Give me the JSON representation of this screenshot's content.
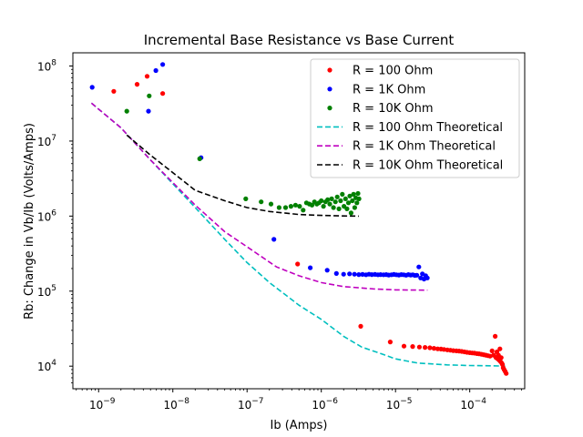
{
  "chart_data": {
    "type": "scatter",
    "title": "Incremental Base Resistance vs Base Current",
    "xlabel": "Ib (Amps)",
    "ylabel": "Rb: Change in Vb/Ib (Volts/Amps)",
    "xscale": "log",
    "yscale": "log",
    "xlim": [
      4.5e-10,
      0.00055
    ],
    "ylim": [
      5000,
      150000000
    ],
    "x_ticks": [
      {
        "value": 1e-09,
        "label": "10",
        "exp": "−9"
      },
      {
        "value": 1e-08,
        "label": "10",
        "exp": "−8"
      },
      {
        "value": 1e-07,
        "label": "10",
        "exp": "−7"
      },
      {
        "value": 1e-06,
        "label": "10",
        "exp": "−6"
      },
      {
        "value": 1e-05,
        "label": "10",
        "exp": "−5"
      },
      {
        "value": 0.0001,
        "label": "10",
        "exp": "−4"
      }
    ],
    "y_ticks": [
      {
        "value": 10000,
        "label": "10",
        "exp": "4"
      },
      {
        "value": 100000,
        "label": "10",
        "exp": "5"
      },
      {
        "value": 1000000,
        "label": "10",
        "exp": "6"
      },
      {
        "value": 10000000,
        "label": "10",
        "exp": "7"
      },
      {
        "value": 100000000,
        "label": "10",
        "exp": "8"
      }
    ],
    "grid": false,
    "legend_position": "top-right",
    "series": [
      {
        "name": "R = 100 Ohm",
        "kind": "markers",
        "color": "#ff0000",
        "x": [
          1.6e-09,
          3.3e-09,
          4.5e-09,
          7.3e-09,
          4.8e-07,
          3.4e-06,
          8.5e-06,
          1.3e-05,
          1.7e-05,
          2.1e-05,
          2.5e-05,
          2.9e-05,
          3.3e-05,
          3.7e-05,
          4.1e-05,
          4.5e-05,
          5e-05,
          5.5e-05,
          6e-05,
          6.6e-05,
          7.2e-05,
          7.8e-05,
          8.5e-05,
          9.2e-05,
          0.0001,
          0.000108,
          0.000116,
          0.000125,
          0.000134,
          0.000144,
          0.000154,
          0.000165,
          0.000176,
          0.000188,
          0.0002,
          0.00021,
          0.00022,
          0.000226,
          0.000232,
          0.000238,
          0.000244,
          0.00025,
          0.000255,
          0.00026,
          0.000265,
          0.00027,
          0.000276,
          0.000282,
          0.00029,
          0.0003,
          0.00031
        ],
        "y": [
          46000000,
          57000000,
          73000000,
          43000000,
          230000,
          34000,
          21000,
          18500,
          18300,
          18000,
          17800,
          17600,
          17300,
          17000,
          16900,
          16700,
          16500,
          16300,
          16100,
          16000,
          15900,
          15700,
          15500,
          15300,
          15100,
          15000,
          14900,
          14700,
          14600,
          14400,
          14200,
          14000,
          13800,
          13600,
          16000,
          14000,
          25000,
          13000,
          15500,
          12500,
          14000,
          12000,
          17000,
          11500,
          13000,
          11000,
          10500,
          9500,
          9000,
          8500,
          8000
        ]
      },
      {
        "name": "R = 1K Ohm",
        "kind": "markers",
        "color": "#0000ff",
        "x": [
          8.2e-10,
          4.7e-09,
          5.9e-09,
          7.3e-09,
          2.4e-08,
          2.3e-07,
          7.1e-07,
          1.2e-06,
          1.6e-06,
          2e-06,
          2.4e-06,
          2.8e-06,
          3.2e-06,
          3.6e-06,
          4e-06,
          4.4e-06,
          4.8e-06,
          5.3e-06,
          5.8e-06,
          6.3e-06,
          6.9e-06,
          7.5e-06,
          8.1e-06,
          8.8e-06,
          9.5e-06,
          1.03e-05,
          1.11e-05,
          1.2e-05,
          1.29e-05,
          1.39e-05,
          1.49e-05,
          1.6e-05,
          1.71e-05,
          1.82e-05,
          1.94e-05,
          2.06e-05,
          2.18e-05,
          2.3e-05,
          2.42e-05,
          2.55e-05,
          2.68e-05
        ],
        "y": [
          52000000,
          25000000,
          87000000,
          105000000,
          6000000,
          490000,
          205000,
          190000,
          172000,
          168000,
          170000,
          168000,
          166000,
          167000,
          165000,
          168000,
          166000,
          167000,
          165000,
          166000,
          165000,
          166000,
          164000,
          165000,
          167000,
          165000,
          164000,
          166000,
          165000,
          163000,
          166000,
          164000,
          165000,
          162000,
          163000,
          210000,
          150000,
          170000,
          145000,
          160000,
          150000
        ]
      },
      {
        "name": "R = 10K Ohm",
        "kind": "markers",
        "color": "#008000",
        "x": [
          2.4e-09,
          4.8e-09,
          2.3e-08,
          9.6e-08,
          1.55e-07,
          2.1e-07,
          2.7e-07,
          3.3e-07,
          3.9e-07,
          4.5e-07,
          5.1e-07,
          5.7e-07,
          6.3e-07,
          6.9e-07,
          7.5e-07,
          8.1e-07,
          8.7e-07,
          9.3e-07,
          1e-06,
          1.07e-06,
          1.14e-06,
          1.22e-06,
          1.3e-06,
          1.38e-06,
          1.46e-06,
          1.55e-06,
          1.64e-06,
          1.73e-06,
          1.82e-06,
          1.92e-06,
          2.02e-06,
          2.12e-06,
          2.22e-06,
          2.32e-06,
          2.42e-06,
          2.52e-06,
          2.62e-06,
          2.72e-06,
          2.82e-06,
          2.92e-06,
          3.02e-06,
          3.12e-06,
          3.22e-06
        ],
        "y": [
          25000000,
          40000000,
          5800000,
          1700000,
          1550000,
          1450000,
          1300000,
          1300000,
          1350000,
          1400000,
          1350000,
          1200000,
          1500000,
          1450000,
          1400000,
          1550000,
          1450000,
          1500000,
          1600000,
          1350000,
          1550000,
          1650000,
          1450000,
          1700000,
          1300000,
          1550000,
          1800000,
          1250000,
          1600000,
          1950000,
          1350000,
          1700000,
          1250000,
          1500000,
          1850000,
          1100000,
          1600000,
          1950000,
          1300000,
          1750000,
          1500000,
          2000000,
          1700000
        ]
      },
      {
        "name": "R = 100 Ohm Theoretical",
        "kind": "line",
        "color": "#00bfbf",
        "x": [
          8e-10,
          2e-09,
          5e-09,
          1e-08,
          2e-08,
          5e-08,
          1e-07,
          2e-07,
          5e-07,
          1e-06,
          2e-06,
          3.5e-06,
          6e-06,
          1e-05,
          2e-05,
          5e-05,
          0.0001,
          0.0002,
          0.0003
        ],
        "y": [
          32000000,
          15000000,
          5600000,
          2700000,
          1300000,
          490000,
          240000,
          130000,
          65000,
          42000,
          25000,
          18000,
          15000,
          12500,
          11000,
          10400,
          10200,
          10100,
          10000
        ]
      },
      {
        "name": "R = 1K Ohm Theoretical",
        "kind": "line",
        "color": "#bf00bf",
        "x": [
          8e-10,
          2e-09,
          5e-09,
          1e-08,
          2e-08,
          5e-08,
          1e-07,
          2.5e-07,
          5e-07,
          1e-06,
          2e-06,
          5e-06,
          1e-05,
          2.7e-05
        ],
        "y": [
          32000000,
          15000000,
          5600000,
          2800000,
          1400000,
          620000,
          390000,
          210000,
          160000,
          130000,
          115000,
          107000,
          104000,
          103000
        ]
      },
      {
        "name": "R = 10K Ohm Theoretical",
        "kind": "line",
        "color": "#000000",
        "x": [
          2.4e-09,
          5e-09,
          1e-08,
          2e-08,
          5e-08,
          1e-07,
          2e-07,
          5e-07,
          1e-06,
          2e-06,
          3.2e-06
        ],
        "y": [
          12000000,
          6500000,
          3800000,
          2200000,
          1600000,
          1300000,
          1150000,
          1050000,
          1020000,
          1005000,
          1000000
        ]
      }
    ]
  }
}
